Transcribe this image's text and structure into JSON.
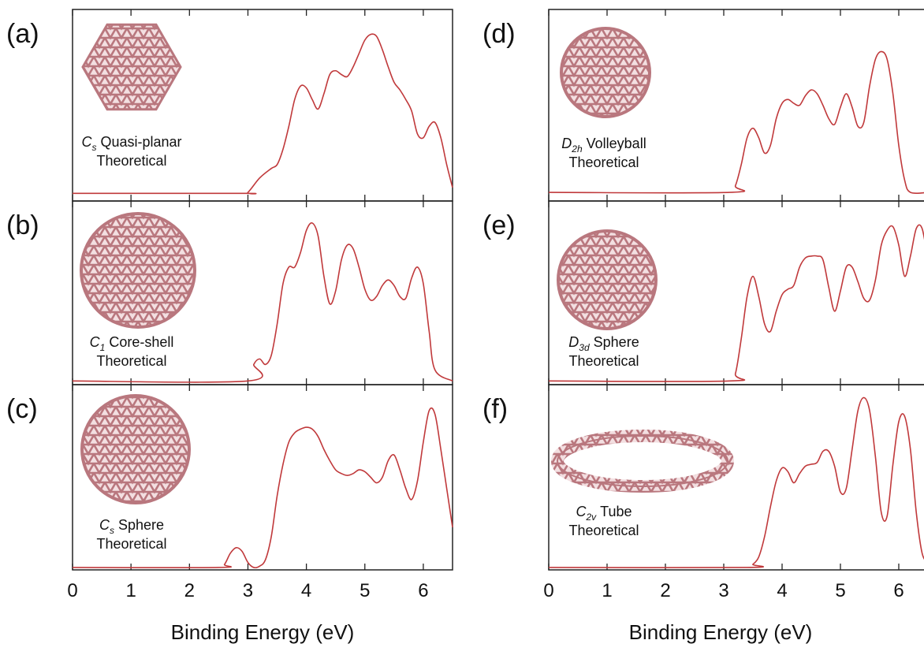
{
  "chart_data": [
    {
      "type": "line",
      "label": "(a)",
      "symmetry": "C",
      "symmetry_sub": "s",
      "name": "Quasi-planar",
      "method": "Theoretical",
      "color": "#c0393b",
      "x": [
        0,
        2.9,
        3,
        3.2,
        3.4,
        3.5,
        3.6,
        3.7,
        3.8,
        3.9,
        4,
        4.1,
        4.2,
        4.3,
        4.4,
        4.5,
        4.6,
        4.7,
        4.8,
        4.9,
        5,
        5.1,
        5.2,
        5.3,
        5.4,
        5.5,
        5.6,
        5.7,
        5.8,
        5.9,
        6,
        6.1,
        6.2,
        6.3,
        6.4,
        6.5
      ],
      "values": [
        0.04,
        0.04,
        0.045,
        0.12,
        0.17,
        0.19,
        0.27,
        0.39,
        0.53,
        0.6,
        0.59,
        0.53,
        0.48,
        0.56,
        0.66,
        0.68,
        0.66,
        0.65,
        0.7,
        0.77,
        0.84,
        0.87,
        0.86,
        0.79,
        0.7,
        0.62,
        0.58,
        0.53,
        0.47,
        0.35,
        0.33,
        0.39,
        0.41,
        0.33,
        0.19,
        0.07
      ],
      "xlim": [
        0,
        6.5
      ],
      "ylim": [
        0,
        1
      ],
      "xticks": [
        0,
        1,
        2,
        3,
        4,
        5,
        6
      ]
    },
    {
      "type": "line",
      "label": "(b)",
      "symmetry": "C",
      "symmetry_sub": "1",
      "name": "Core-shell",
      "method": "Theoretical",
      "color": "#c0393b",
      "x": [
        0,
        3,
        3.1,
        3.2,
        3.3,
        3.4,
        3.5,
        3.6,
        3.7,
        3.8,
        3.9,
        4,
        4.1,
        4.2,
        4.3,
        4.4,
        4.5,
        4.6,
        4.7,
        4.8,
        4.9,
        5,
        5.1,
        5.2,
        5.3,
        5.4,
        5.5,
        5.6,
        5.7,
        5.8,
        5.9,
        6,
        6.1,
        6.2,
        6.5
      ],
      "values": [
        0.02,
        0.02,
        0.11,
        0.14,
        0.11,
        0.16,
        0.33,
        0.55,
        0.64,
        0.64,
        0.72,
        0.84,
        0.88,
        0.81,
        0.59,
        0.44,
        0.51,
        0.68,
        0.76,
        0.74,
        0.64,
        0.52,
        0.46,
        0.48,
        0.54,
        0.57,
        0.54,
        0.48,
        0.47,
        0.58,
        0.64,
        0.55,
        0.29,
        0.08,
        0.02
      ],
      "xlim": [
        0,
        6.5
      ],
      "ylim": [
        0,
        1
      ],
      "xticks": [
        0,
        1,
        2,
        3,
        4,
        5,
        6
      ]
    },
    {
      "type": "line",
      "label": "(c)",
      "symmetry": "C",
      "symmetry_sub": "s",
      "name": "Sphere",
      "method": "Theoretical",
      "color": "#c0393b",
      "x": [
        0,
        2.5,
        2.6,
        2.7,
        2.8,
        2.9,
        3,
        3.1,
        3.2,
        3.3,
        3.4,
        3.5,
        3.6,
        3.7,
        3.8,
        3.9,
        4,
        4.1,
        4.2,
        4.3,
        4.4,
        4.5,
        4.6,
        4.7,
        4.8,
        4.9,
        5,
        5.1,
        5.2,
        5.3,
        5.4,
        5.5,
        5.6,
        5.7,
        5.8,
        5.9,
        6,
        6.1,
        6.2,
        6.3,
        6.4,
        6.5
      ],
      "values": [
        0.013,
        0.013,
        0.03,
        0.09,
        0.12,
        0.1,
        0.04,
        0.013,
        0.02,
        0.055,
        0.18,
        0.4,
        0.57,
        0.69,
        0.74,
        0.76,
        0.77,
        0.76,
        0.72,
        0.65,
        0.59,
        0.54,
        0.52,
        0.51,
        0.52,
        0.54,
        0.53,
        0.5,
        0.47,
        0.5,
        0.59,
        0.62,
        0.54,
        0.44,
        0.38,
        0.48,
        0.69,
        0.86,
        0.84,
        0.65,
        0.44,
        0.23
      ],
      "xlim": [
        0,
        6.5
      ],
      "ylim": [
        0,
        1
      ],
      "xticks": [
        0,
        1,
        2,
        3,
        4,
        5,
        6
      ],
      "xlabel": "Binding Energy (eV)"
    },
    {
      "type": "line",
      "label": "(d)",
      "symmetry": "D",
      "symmetry_sub": "2h",
      "name": "Volleyball",
      "method": "Theoretical",
      "color": "#c0393b",
      "x": [
        0,
        3.1,
        3.2,
        3.3,
        3.4,
        3.5,
        3.6,
        3.7,
        3.8,
        3.9,
        4,
        4.1,
        4.2,
        4.3,
        4.4,
        4.5,
        4.6,
        4.7,
        4.8,
        4.9,
        5,
        5.1,
        5.2,
        5.3,
        5.4,
        5.5,
        5.6,
        5.7,
        5.8,
        5.9,
        6,
        6.1,
        6.2,
        6.5
      ],
      "values": [
        0.045,
        0.045,
        0.08,
        0.19,
        0.33,
        0.38,
        0.33,
        0.25,
        0.29,
        0.43,
        0.51,
        0.53,
        0.51,
        0.5,
        0.55,
        0.58,
        0.56,
        0.5,
        0.43,
        0.4,
        0.49,
        0.56,
        0.49,
        0.39,
        0.41,
        0.6,
        0.74,
        0.78,
        0.74,
        0.56,
        0.29,
        0.11,
        0.045,
        0.045
      ],
      "xlim": [
        0,
        6.5
      ],
      "ylim": [
        0,
        1
      ],
      "xticks": [
        0,
        1,
        2,
        3,
        4,
        5,
        6
      ]
    },
    {
      "type": "line",
      "label": "(e)",
      "symmetry": "D",
      "symmetry_sub": "3d",
      "name": "Sphere",
      "method": "Theoretical",
      "color": "#c0393b",
      "x": [
        0,
        3.1,
        3.2,
        3.3,
        3.4,
        3.5,
        3.6,
        3.7,
        3.8,
        3.9,
        4,
        4.1,
        4.2,
        4.3,
        4.4,
        4.5,
        4.6,
        4.7,
        4.8,
        4.9,
        5,
        5.1,
        5.2,
        5.3,
        5.4,
        5.5,
        5.6,
        5.7,
        5.8,
        5.9,
        6,
        6.1,
        6.2,
        6.3,
        6.4,
        6.5
      ],
      "values": [
        0.02,
        0.02,
        0.06,
        0.25,
        0.48,
        0.59,
        0.48,
        0.33,
        0.29,
        0.4,
        0.49,
        0.52,
        0.54,
        0.64,
        0.69,
        0.7,
        0.7,
        0.68,
        0.53,
        0.4,
        0.51,
        0.64,
        0.64,
        0.56,
        0.47,
        0.46,
        0.57,
        0.76,
        0.84,
        0.86,
        0.76,
        0.59,
        0.7,
        0.85,
        0.85,
        0.68
      ],
      "xlim": [
        0,
        6.5
      ],
      "ylim": [
        0,
        1
      ],
      "xticks": [
        0,
        1,
        2,
        3,
        4,
        5,
        6
      ]
    },
    {
      "type": "line",
      "label": "(f)",
      "symmetry": "C",
      "symmetry_sub": "2v",
      "name": "Tube",
      "method": "Theoretical",
      "color": "#c0393b",
      "x": [
        0,
        3.4,
        3.5,
        3.6,
        3.7,
        3.8,
        3.9,
        4,
        4.1,
        4.2,
        4.3,
        4.4,
        4.5,
        4.6,
        4.7,
        4.8,
        4.9,
        5,
        5.1,
        5.2,
        5.3,
        5.4,
        5.5,
        5.6,
        5.7,
        5.8,
        5.9,
        6,
        6.1,
        6.2,
        6.3,
        6.4,
        6.5
      ],
      "values": [
        0.013,
        0.013,
        0.03,
        0.07,
        0.18,
        0.34,
        0.48,
        0.55,
        0.53,
        0.47,
        0.52,
        0.56,
        0.57,
        0.58,
        0.64,
        0.64,
        0.56,
        0.42,
        0.44,
        0.65,
        0.86,
        0.93,
        0.86,
        0.61,
        0.31,
        0.29,
        0.57,
        0.8,
        0.83,
        0.65,
        0.31,
        0.09,
        0.04
      ],
      "xlim": [
        0,
        6.5
      ],
      "ylim": [
        0,
        1
      ],
      "xticks": [
        0,
        1,
        2,
        3,
        4,
        5,
        6
      ],
      "xlabel": "Binding Energy (eV)"
    }
  ]
}
